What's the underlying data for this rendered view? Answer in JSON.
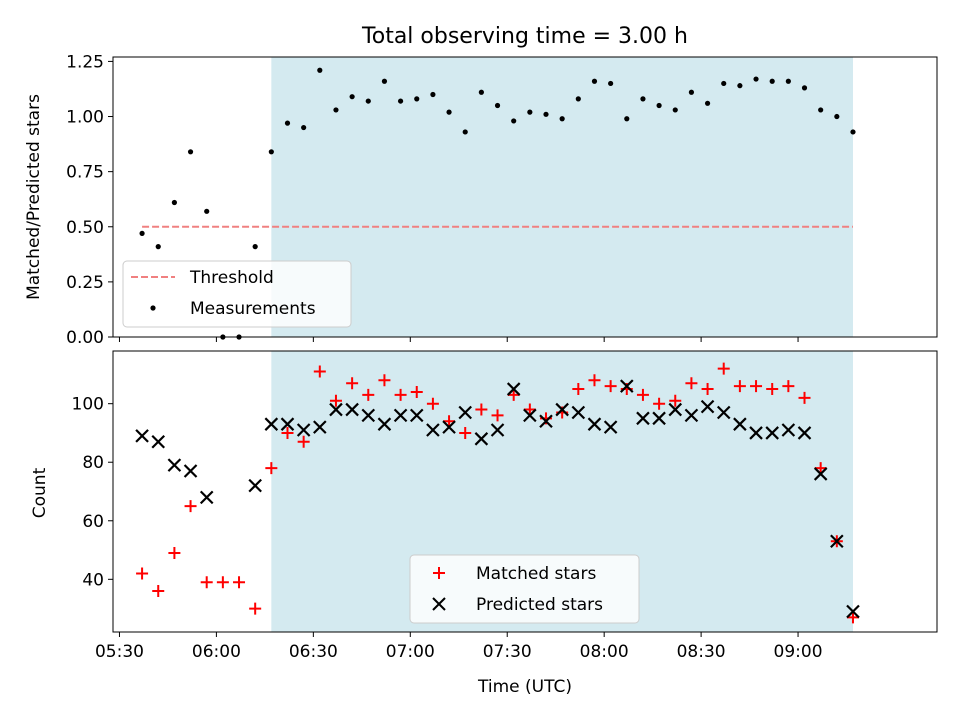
{
  "chart_data": [
    {
      "type": "scatter",
      "title": "Total observing time = 3.00 h",
      "ylabel": "Matched/Predicted stars",
      "ylim": [
        0,
        1.27
      ],
      "yticks": [
        0.0,
        0.25,
        0.5,
        0.75,
        1.0,
        1.25
      ],
      "ytick_labels": [
        "0.00",
        "0.25",
        "0.50",
        "0.75",
        "1.00",
        "1.25"
      ],
      "xlim": [
        "05:28",
        "09:43"
      ],
      "shaded_span": [
        "06:17",
        "09:17"
      ],
      "shade_color": "#d4eaf0",
      "threshold": {
        "label": "Threshold",
        "value": 0.5,
        "x_range": [
          "05:37",
          "09:17"
        ],
        "color": "#f08080"
      },
      "series": [
        {
          "name": "Measurements",
          "color": "#000000",
          "x": [
            "05:37",
            "05:42",
            "05:47",
            "05:52",
            "05:57",
            "06:02",
            "06:07",
            "06:12",
            "06:17",
            "06:22",
            "06:27",
            "06:32",
            "06:37",
            "06:42",
            "06:47",
            "06:52",
            "06:57",
            "07:02",
            "07:07",
            "07:12",
            "07:17",
            "07:22",
            "07:27",
            "07:32",
            "07:37",
            "07:42",
            "07:47",
            "07:52",
            "07:57",
            "08:02",
            "08:07",
            "08:12",
            "08:17",
            "08:22",
            "08:27",
            "08:32",
            "08:37",
            "08:42",
            "08:47",
            "08:52",
            "08:57",
            "09:02",
            "09:07",
            "09:12",
            "09:17"
          ],
          "y": [
            0.47,
            0.41,
            0.61,
            0.84,
            0.57,
            0.0,
            0.0,
            0.41,
            0.84,
            0.97,
            0.95,
            1.21,
            1.03,
            1.09,
            1.07,
            1.16,
            1.07,
            1.08,
            1.1,
            1.02,
            0.93,
            1.11,
            1.05,
            0.98,
            1.02,
            1.01,
            0.99,
            1.08,
            1.16,
            1.15,
            0.99,
            1.08,
            1.05,
            1.03,
            1.11,
            1.06,
            1.15,
            1.14,
            1.17,
            1.16,
            1.16,
            1.13,
            1.03,
            1.0,
            0.93
          ]
        }
      ],
      "legend_position": "lower-left"
    },
    {
      "type": "scatter",
      "xlabel": "Time (UTC)",
      "ylabel": "Count",
      "ylim": [
        22,
        118
      ],
      "yticks": [
        40,
        60,
        80,
        100
      ],
      "xlim": [
        "05:28",
        "09:43"
      ],
      "xtick_labels": [
        "05:30",
        "06:00",
        "06:30",
        "07:00",
        "07:30",
        "08:00",
        "08:30",
        "09:00"
      ],
      "shaded_span": [
        "06:17",
        "09:17"
      ],
      "series": [
        {
          "name": "Matched stars",
          "marker": "+",
          "color": "#ff0000",
          "x": [
            "05:37",
            "05:42",
            "05:47",
            "05:52",
            "05:57",
            "06:02",
            "06:07",
            "06:12",
            "06:17",
            "06:22",
            "06:27",
            "06:32",
            "06:37",
            "06:42",
            "06:47",
            "06:52",
            "06:57",
            "07:02",
            "07:07",
            "07:12",
            "07:17",
            "07:22",
            "07:27",
            "07:32",
            "07:37",
            "07:42",
            "07:47",
            "07:52",
            "07:57",
            "08:02",
            "08:07",
            "08:12",
            "08:17",
            "08:22",
            "08:27",
            "08:32",
            "08:37",
            "08:42",
            "08:47",
            "08:52",
            "08:57",
            "09:02",
            "09:07",
            "09:12",
            "09:17"
          ],
          "y": [
            42,
            36,
            49,
            65,
            39,
            39,
            39,
            30,
            78,
            90,
            87,
            111,
            101,
            107,
            103,
            108,
            103,
            104,
            100,
            94,
            90,
            98,
            96,
            103,
            98,
            95,
            97,
            105,
            108,
            106,
            105,
            103,
            100,
            101,
            107,
            105,
            112,
            106,
            106,
            105,
            106,
            102,
            78,
            53,
            27
          ]
        },
        {
          "name": "Predicted stars",
          "marker": "x",
          "color": "#000000",
          "x": [
            "05:37",
            "05:42",
            "05:47",
            "05:52",
            "05:57",
            "06:12",
            "06:17",
            "06:22",
            "06:27",
            "06:32",
            "06:37",
            "06:42",
            "06:47",
            "06:52",
            "06:57",
            "07:02",
            "07:07",
            "07:12",
            "07:17",
            "07:22",
            "07:27",
            "07:32",
            "07:37",
            "07:42",
            "07:47",
            "07:52",
            "07:57",
            "08:02",
            "08:07",
            "08:12",
            "08:17",
            "08:22",
            "08:27",
            "08:32",
            "08:37",
            "08:42",
            "08:47",
            "08:52",
            "08:57",
            "09:02",
            "09:07",
            "09:12",
            "09:17"
          ],
          "y": [
            89,
            87,
            79,
            77,
            68,
            72,
            93,
            93,
            91,
            92,
            98,
            98,
            96,
            93,
            96,
            96,
            91,
            92,
            97,
            88,
            91,
            105,
            96,
            94,
            98,
            97,
            93,
            92,
            106,
            95,
            95,
            98,
            96,
            99,
            97,
            93,
            90,
            90,
            91,
            90,
            76,
            53,
            29
          ]
        }
      ],
      "legend_position": "lower-center"
    }
  ]
}
